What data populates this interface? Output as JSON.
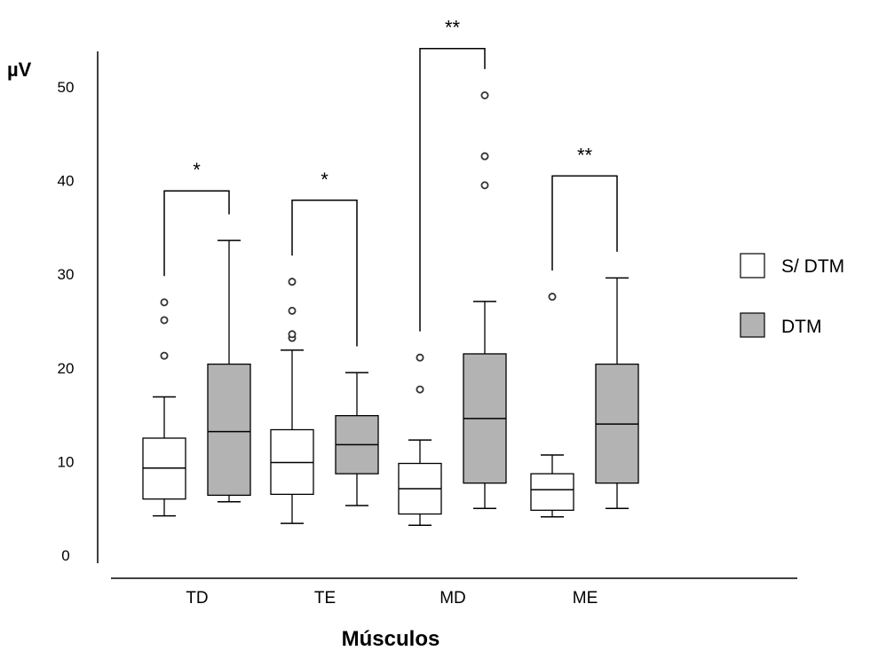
{
  "chart_data": {
    "type": "boxplot",
    "title": "",
    "xlabel": "Músculos",
    "ylabel": "µV",
    "ylim": [
      0,
      50
    ],
    "yticks": [
      0,
      10,
      20,
      30,
      40,
      50
    ],
    "grid": false,
    "legend_position": "right",
    "categories": [
      "TD",
      "TE",
      "MD",
      "ME"
    ],
    "series": [
      {
        "name": "S/ DTM",
        "color": "#ffffff",
        "boxes": [
          {
            "min": 4.2,
            "q1": 6.0,
            "median": 9.3,
            "q3": 12.5,
            "max": 16.9,
            "outliers": [
              21.3,
              25.1,
              27.0
            ]
          },
          {
            "min": 3.4,
            "q1": 6.5,
            "median": 9.9,
            "q3": 13.4,
            "max": 21.9,
            "outliers": [
              23.2,
              23.6,
              26.1,
              29.2
            ]
          },
          {
            "min": 3.2,
            "q1": 4.4,
            "median": 7.1,
            "q3": 9.8,
            "max": 12.3,
            "outliers": [
              17.7,
              21.1
            ]
          },
          {
            "min": 4.1,
            "q1": 4.8,
            "median": 7.0,
            "q3": 8.7,
            "max": 10.7,
            "outliers": [
              27.6
            ]
          }
        ]
      },
      {
        "name": "DTM",
        "color": "#b3b3b3",
        "boxes": [
          {
            "min": 5.7,
            "q1": 6.4,
            "median": 13.2,
            "q3": 20.4,
            "max": 33.6,
            "outliers": []
          },
          {
            "min": 5.3,
            "q1": 8.7,
            "median": 11.8,
            "q3": 14.9,
            "max": 19.5,
            "outliers": []
          },
          {
            "min": 5.0,
            "q1": 7.7,
            "median": 14.6,
            "q3": 21.5,
            "max": 27.1,
            "outliers": [
              39.5,
              42.6,
              49.1
            ]
          },
          {
            "min": 5.0,
            "q1": 7.7,
            "median": 14.0,
            "q3": 20.4,
            "max": 29.6,
            "outliers": []
          }
        ]
      }
    ],
    "annotations": [
      {
        "category": "TD",
        "text": "*",
        "y": 38.9
      },
      {
        "category": "TE",
        "text": "*",
        "y": 37.9
      },
      {
        "category": "MD",
        "text": "**",
        "y": 54.1
      },
      {
        "category": "ME",
        "text": "**",
        "y": 40.5
      }
    ]
  }
}
